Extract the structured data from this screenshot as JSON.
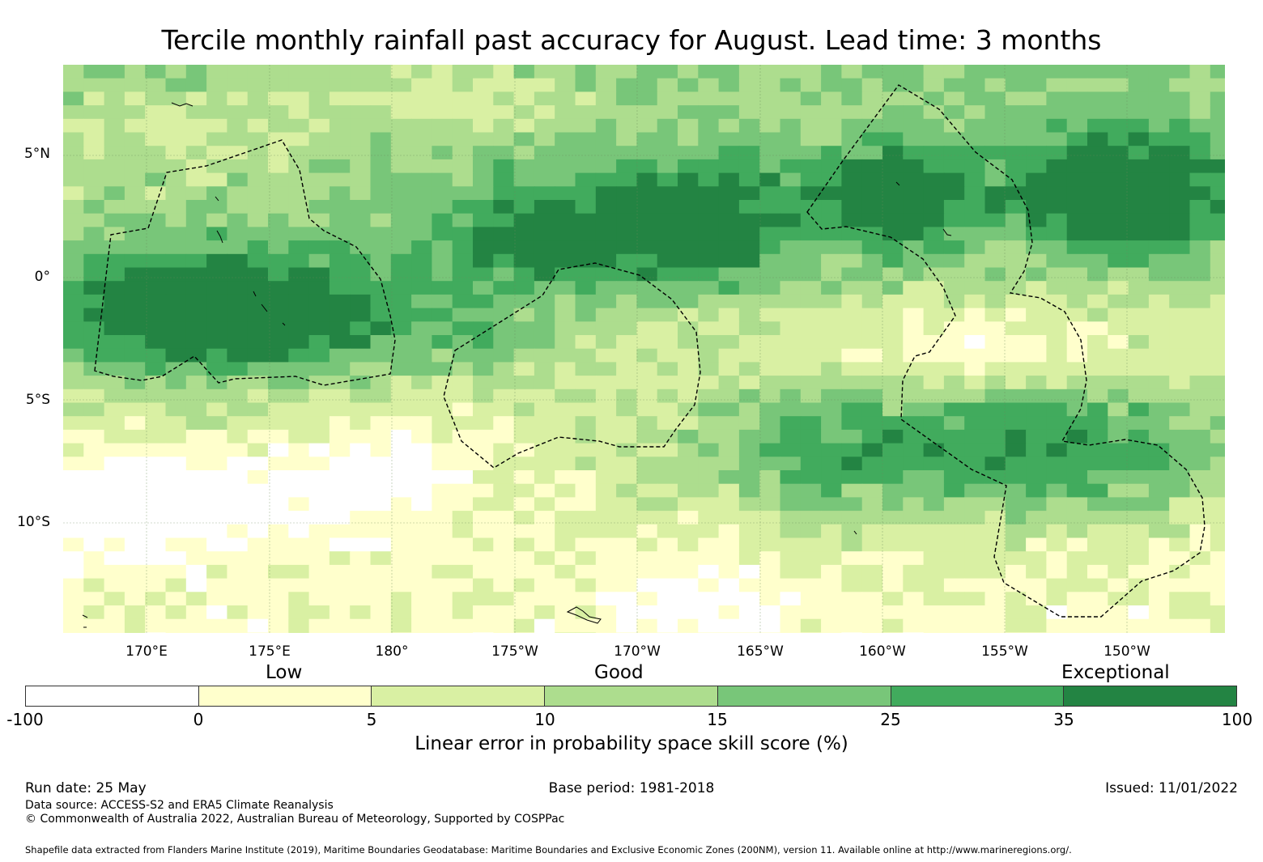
{
  "title": "Tercile monthly rainfall past accuracy for August. Lead time: 3 months",
  "map": {
    "lat_labels": [
      "5°N",
      "0°",
      "5°S",
      "10°S"
    ],
    "lon_labels": [
      "170°E",
      "175°E",
      "180°",
      "175°W",
      "170°W",
      "165°W",
      "160°W",
      "155°W",
      "150°W"
    ]
  },
  "legend": {
    "categories": [
      "Low",
      "Good",
      "Exceptional"
    ],
    "bins": [
      "-100",
      "0",
      "5",
      "10",
      "15",
      "25",
      "35",
      "100"
    ],
    "colors": [
      "#ffffff",
      "#ffffcc",
      "#d9f0a3",
      "#addd8e",
      "#78c679",
      "#41ab5d",
      "#238443"
    ],
    "label": "Linear error in probability space skill score (%)"
  },
  "footer": {
    "run_date": "Run date: 25 May",
    "base_period": "Base period: 1981-2018",
    "issued": "Issued: 11/01/2022",
    "data_source": "Data source: ACCESS-S2 and ERA5 Climate Reanalysis",
    "copyright": "© Commonwealth of Australia 2022, Australian Bureau of Meteorology, Supported by COSPPac",
    "shapefile": "Shapefile data extracted from Flanders Marine Institute (2019), Maritime Boundaries Geodatabase: Maritime Boundaries and Exclusive Economic Zones (200NM), version 11. Available online at http://www.marineregions.org/."
  }
}
